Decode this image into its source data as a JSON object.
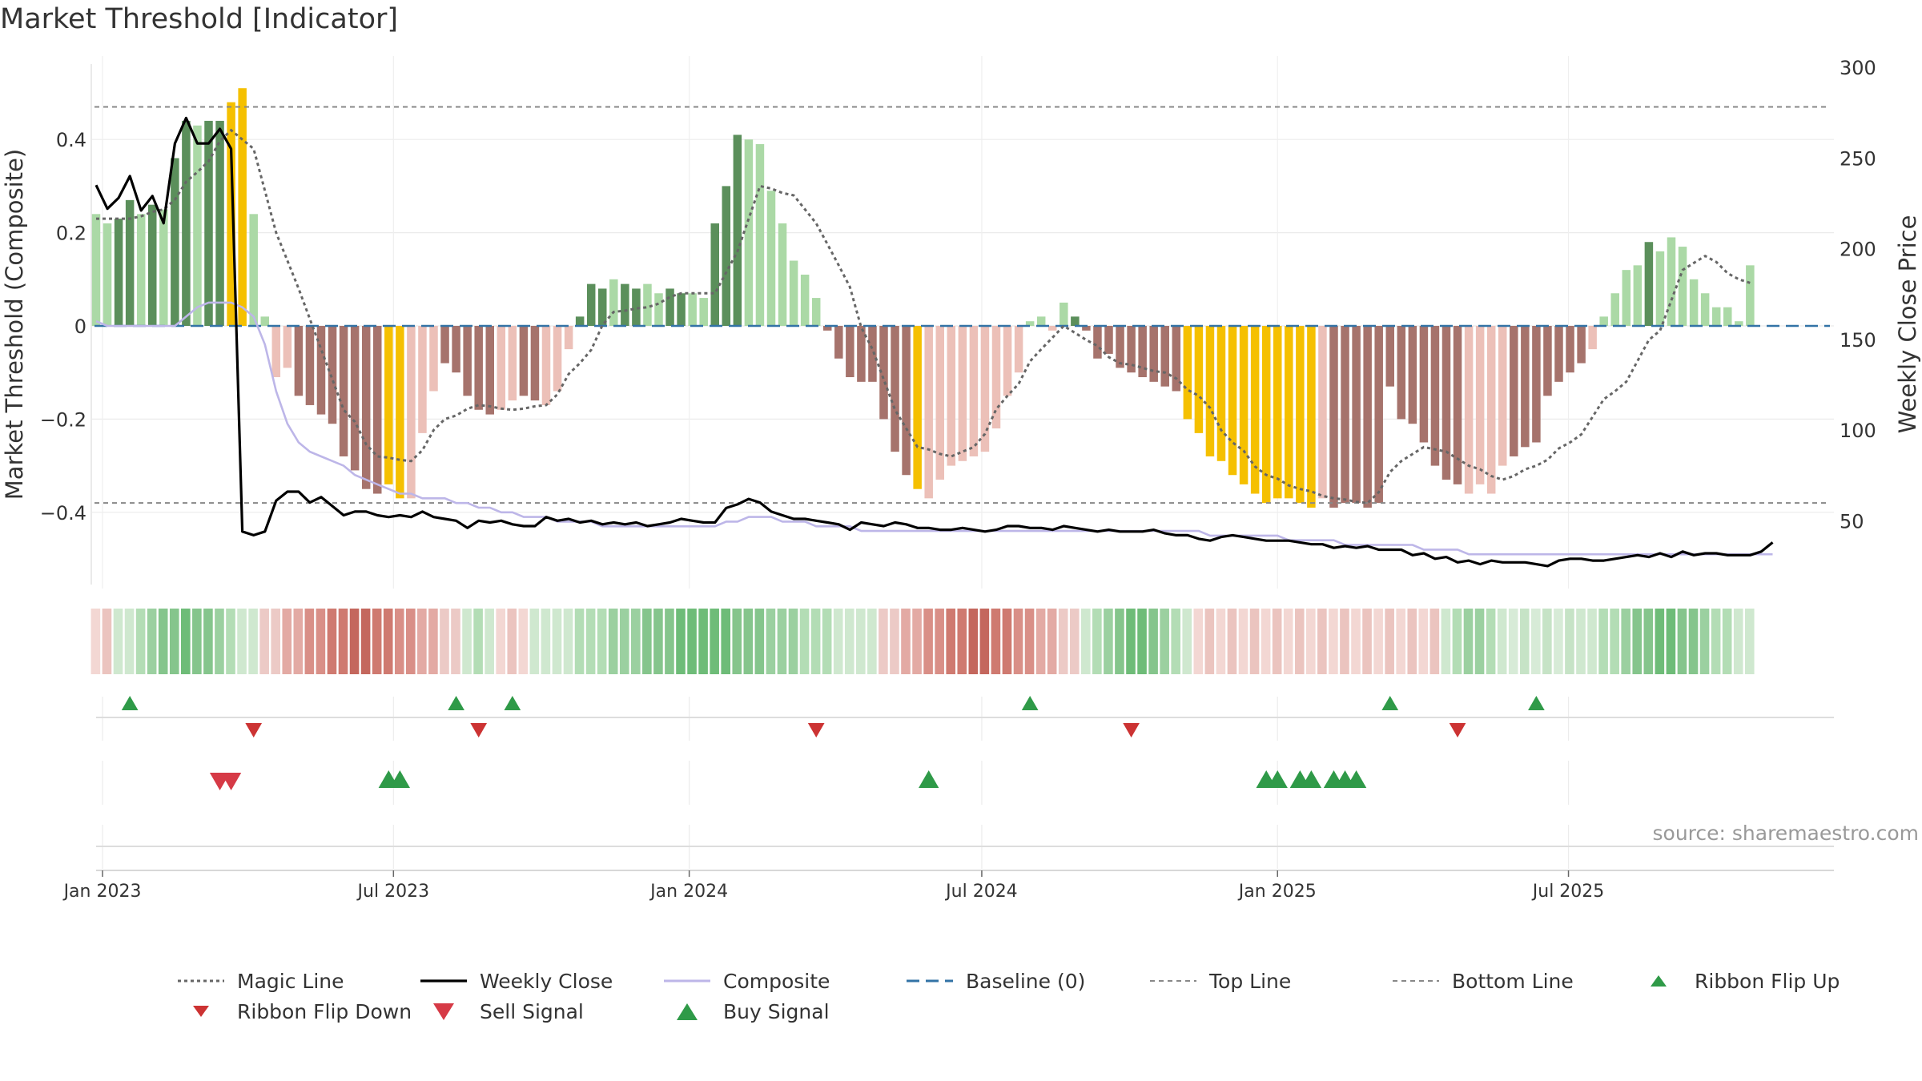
{
  "title": "Market Threshold [Indicator]",
  "source": "source: sharemaestro.com",
  "colors": {
    "strong_up": "#5b8f5b",
    "weak_up": "#abd9a6",
    "strong_down": "#a6736c",
    "weak_down": "#ecc0b8",
    "extreme": "#f5c000",
    "magic": "#666666",
    "close": "#000000",
    "composite": "#bdb6e8",
    "baseline": "#3373a6",
    "buy": "#2f9a48",
    "sell": "#d63a46",
    "ribbon_flip_down": "#cc3333"
  },
  "chart_data": {
    "type": "bar",
    "title": "Market Threshold [Indicator]",
    "ylabel": "Market Threshold (Composite)",
    "y2label": "Weekly Close Price",
    "ylim": [
      -0.56,
      0.56
    ],
    "y2lim": [
      20,
      300
    ],
    "yticks": [
      0.4,
      0.2,
      0,
      -0.2,
      -0.4
    ],
    "ytick_labels": [
      "0.4",
      "0.2",
      "0",
      "−0.2",
      "−0.4"
    ],
    "y2ticks": [
      300,
      250,
      200,
      150,
      100,
      50
    ],
    "y2tick_labels": [
      "300",
      "250",
      "200",
      "150",
      "100",
      "50"
    ],
    "x_start": "2022-12-28",
    "x_ticks": [
      {
        "label": "Jan 2023",
        "date": "2023-01-01"
      },
      {
        "label": "Jul 2023",
        "date": "2023-07-01"
      },
      {
        "label": "Jan 2024",
        "date": "2024-01-01"
      },
      {
        "label": "Jul 2024",
        "date": "2024-07-01"
      },
      {
        "label": "Jan 2025",
        "date": "2025-01-01"
      },
      {
        "label": "Jul 2025",
        "date": "2025-07-01"
      }
    ],
    "top_line": 0.47,
    "bottom_line": -0.38,
    "baseline": 0,
    "composite_bars": [
      0.24,
      0.22,
      0.23,
      0.27,
      0.24,
      0.26,
      0.25,
      0.36,
      0.44,
      0.43,
      0.44,
      0.44,
      0.48,
      0.51,
      0.24,
      0.02,
      -0.11,
      -0.09,
      -0.15,
      -0.17,
      -0.19,
      -0.21,
      -0.28,
      -0.31,
      -0.35,
      -0.36,
      -0.34,
      -0.37,
      -0.37,
      -0.23,
      -0.14,
      -0.08,
      -0.1,
      -0.15,
      -0.18,
      -0.19,
      -0.18,
      -0.16,
      -0.15,
      -0.16,
      -0.17,
      -0.14,
      -0.05,
      0.02,
      0.09,
      0.08,
      0.1,
      0.09,
      0.08,
      0.09,
      0.07,
      0.08,
      0.07,
      0.07,
      0.06,
      0.22,
      0.3,
      0.41,
      0.4,
      0.39,
      0.29,
      0.22,
      0.14,
      0.11,
      0.06,
      -0.01,
      -0.07,
      -0.11,
      -0.12,
      -0.12,
      -0.2,
      -0.27,
      -0.32,
      -0.35,
      -0.37,
      -0.33,
      -0.3,
      -0.29,
      -0.28,
      -0.27,
      -0.22,
      -0.15,
      -0.1,
      0.01,
      0.02,
      -0.01,
      0.05,
      0.02,
      -0.01,
      -0.07,
      -0.06,
      -0.09,
      -0.1,
      -0.11,
      -0.12,
      -0.13,
      -0.14,
      -0.2,
      -0.23,
      -0.28,
      -0.29,
      -0.32,
      -0.34,
      -0.36,
      -0.38,
      -0.37,
      -0.37,
      -0.38,
      -0.39,
      -0.37,
      -0.39,
      -0.38,
      -0.38,
      -0.39,
      -0.38,
      -0.13,
      -0.2,
      -0.21,
      -0.25,
      -0.3,
      -0.33,
      -0.34,
      -0.36,
      -0.34,
      -0.36,
      -0.3,
      -0.28,
      -0.26,
      -0.25,
      -0.15,
      -0.12,
      -0.1,
      -0.08,
      -0.05,
      0.02,
      0.07,
      0.12,
      0.13,
      0.18,
      0.16,
      0.19,
      0.17,
      0.1,
      0.07,
      0.04,
      0.04,
      0.01,
      0.13
    ],
    "bar_classes": "WWSSWSWSSWSSYYWWWWSSSSSSSSYYWWWSSSSSWWSSWWWSSSWSSWWSSWWSSSWWWWWWWSSSSSSSSYWWWWWWWWWWWWWSSSSSSSSSSYYYYYYYYYYYYWSSSSSSSSSSSSWWWWSSSSSSSWWWWWS",
    "weekly_close": [
      235,
      222,
      228,
      240,
      221,
      229,
      214,
      258,
      272,
      258,
      258,
      266,
      255,
      44,
      42,
      44,
      61,
      66,
      66,
      60,
      63,
      58,
      53,
      55,
      55,
      53,
      52,
      53,
      52,
      55,
      52,
      51,
      50,
      46,
      50,
      49,
      50,
      48,
      47,
      47,
      52,
      50,
      51,
      49,
      50,
      48,
      49,
      48,
      49,
      47,
      48,
      49,
      51,
      50,
      49,
      49,
      57,
      59,
      62,
      60,
      55,
      53,
      51,
      51,
      50,
      49,
      48,
      45,
      49,
      48,
      47,
      49,
      48,
      46,
      46,
      45,
      45,
      46,
      45,
      44,
      45,
      47,
      47,
      46,
      46,
      45,
      47,
      46,
      45,
      44,
      45,
      44,
      44,
      44,
      45,
      43,
      42,
      42,
      40,
      39,
      41,
      42,
      41,
      40,
      39,
      39,
      39,
      38,
      37,
      37,
      35,
      36,
      35,
      36,
      34,
      34,
      34,
      31,
      32,
      29,
      30,
      27,
      28,
      26,
      28,
      27,
      27,
      27,
      26,
      25,
      28,
      29,
      29,
      28,
      28,
      29,
      30,
      31,
      30,
      32,
      30,
      33,
      31,
      32,
      32,
      31,
      31,
      31,
      33,
      38
    ],
    "composite_line": [
      0.01,
      0.0,
      0.0,
      0.0,
      0.0,
      0.0,
      0.0,
      0.0,
      0.02,
      0.04,
      0.05,
      0.05,
      0.05,
      0.04,
      0.02,
      -0.04,
      -0.14,
      -0.21,
      -0.25,
      -0.27,
      -0.28,
      -0.29,
      -0.3,
      -0.32,
      -0.33,
      -0.34,
      -0.35,
      -0.36,
      -0.36,
      -0.37,
      -0.37,
      -0.37,
      -0.38,
      -0.38,
      -0.39,
      -0.39,
      -0.4,
      -0.4,
      -0.41,
      -0.41,
      -0.41,
      -0.42,
      -0.42,
      -0.42,
      -0.42,
      -0.43,
      -0.43,
      -0.43,
      -0.43,
      -0.43,
      -0.43,
      -0.43,
      -0.43,
      -0.43,
      -0.43,
      -0.43,
      -0.42,
      -0.42,
      -0.41,
      -0.41,
      -0.41,
      -0.42,
      -0.42,
      -0.42,
      -0.43,
      -0.43,
      -0.43,
      -0.43,
      -0.44,
      -0.44,
      -0.44,
      -0.44,
      -0.44,
      -0.44,
      -0.44,
      -0.44,
      -0.44,
      -0.44,
      -0.44,
      -0.44,
      -0.44,
      -0.44,
      -0.44,
      -0.44,
      -0.44,
      -0.44,
      -0.44,
      -0.44,
      -0.44,
      -0.44,
      -0.44,
      -0.44,
      -0.44,
      -0.44,
      -0.44,
      -0.44,
      -0.44,
      -0.44,
      -0.44,
      -0.45,
      -0.45,
      -0.45,
      -0.45,
      -0.45,
      -0.45,
      -0.45,
      -0.46,
      -0.46,
      -0.46,
      -0.46,
      -0.46,
      -0.47,
      -0.47,
      -0.47,
      -0.47,
      -0.47,
      -0.47,
      -0.47,
      -0.48,
      -0.48,
      -0.48,
      -0.48,
      -0.49,
      -0.49,
      -0.49,
      -0.49,
      -0.49,
      -0.49,
      -0.49,
      -0.49,
      -0.49,
      -0.49,
      -0.49,
      -0.49,
      -0.49,
      -0.49,
      -0.49,
      -0.49,
      -0.49,
      -0.49,
      -0.49,
      -0.49,
      -0.49,
      -0.49,
      -0.49,
      -0.49,
      -0.49,
      -0.49,
      -0.49,
      -0.49
    ],
    "magic_keys": [
      [
        0,
        0.23
      ],
      [
        3,
        0.23
      ],
      [
        6,
        0.25
      ],
      [
        9,
        0.33
      ],
      [
        12,
        0.42
      ],
      [
        14,
        0.38
      ],
      [
        16,
        0.2
      ],
      [
        18,
        0.08
      ],
      [
        20,
        -0.05
      ],
      [
        22,
        -0.18
      ],
      [
        25,
        -0.28
      ],
      [
        28,
        -0.29
      ],
      [
        31,
        -0.2
      ],
      [
        34,
        -0.17
      ],
      [
        37,
        -0.18
      ],
      [
        40,
        -0.17
      ],
      [
        43,
        -0.08
      ],
      [
        46,
        0.03
      ],
      [
        49,
        0.04
      ],
      [
        52,
        0.07
      ],
      [
        55,
        0.07
      ],
      [
        57,
        0.16
      ],
      [
        59,
        0.3
      ],
      [
        62,
        0.28
      ],
      [
        64,
        0.22
      ],
      [
        66,
        0.13
      ],
      [
        69,
        -0.05
      ],
      [
        71,
        -0.18
      ],
      [
        73,
        -0.26
      ],
      [
        76,
        -0.28
      ],
      [
        78,
        -0.26
      ],
      [
        81,
        -0.15
      ],
      [
        84,
        -0.05
      ],
      [
        86,
        0.0
      ],
      [
        88,
        -0.03
      ],
      [
        91,
        -0.08
      ],
      [
        95,
        -0.1
      ],
      [
        98,
        -0.15
      ],
      [
        101,
        -0.25
      ],
      [
        104,
        -0.32
      ],
      [
        107,
        -0.35
      ],
      [
        110,
        -0.37
      ],
      [
        113,
        -0.38
      ],
      [
        116,
        -0.29
      ],
      [
        118,
        -0.26
      ],
      [
        120,
        -0.27
      ],
      [
        122,
        -0.3
      ],
      [
        125,
        -0.33
      ],
      [
        128,
        -0.3
      ],
      [
        131,
        -0.25
      ],
      [
        135,
        -0.14
      ],
      [
        139,
        -0.01
      ],
      [
        141,
        0.12
      ],
      [
        143,
        0.15
      ],
      [
        146,
        0.1
      ],
      [
        149,
        0.07
      ]
    ],
    "ribbon": "WWGGGGGGGGGGGGGRRRRRRRRRRRRRRRRRRGGGWWWGGGGGGGGGGGGGGGGGGGGGGGGGGGGGGGRRRRRRRRRRRRRRRRRRGGGGGGGGGGWWWWWWWWWWWWWWWWWWWWWWGGGGGGWWWWWWGGGGGGGGGGGGGGGGGGGGGGG",
    "ribbon_flip_up": [
      3,
      32,
      37,
      83,
      115,
      128
    ],
    "ribbon_flip_down": [
      14,
      34,
      64,
      92,
      121
    ],
    "sell_signal": [
      11,
      12
    ],
    "buy_signal": [
      26,
      27,
      74,
      104,
      105,
      107,
      108,
      110,
      111,
      112
    ]
  },
  "legend": [
    {
      "label": "Magic Line",
      "key": "magic"
    },
    {
      "label": "Weekly Close",
      "key": "close"
    },
    {
      "label": "Composite",
      "key": "composite"
    },
    {
      "label": "Baseline (0)",
      "key": "baseline"
    },
    {
      "label": "Top Line",
      "key": "top"
    },
    {
      "label": "Bottom Line",
      "key": "bottom"
    },
    {
      "label": "Ribbon Flip Up",
      "key": "flip_up"
    },
    {
      "label": "Ribbon Flip Down",
      "key": "flip_down"
    },
    {
      "label": "Sell Signal",
      "key": "sell"
    },
    {
      "label": "Buy Signal",
      "key": "buy"
    }
  ]
}
